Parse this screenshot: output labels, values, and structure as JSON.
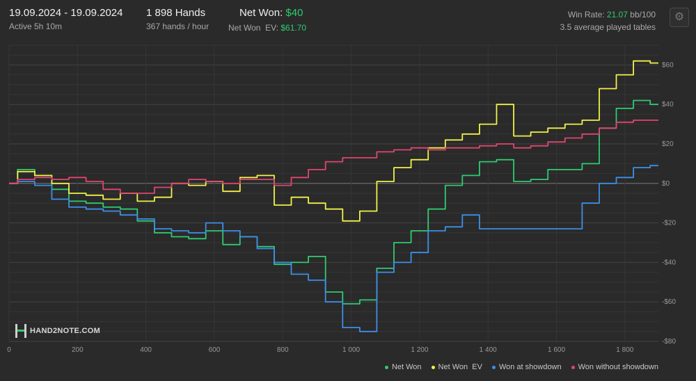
{
  "header": {
    "date_range": "19.09.2024 - 19.09.2024",
    "active": "Active 5h 10m",
    "hands": "1 898 Hands",
    "hands_per_hour": "367 hands / hour",
    "net_won_label": "Net Won:",
    "net_won_value": "$40",
    "net_won_ev_label": "Net Won  EV:",
    "net_won_ev_value": "$61.70",
    "win_rate_label": "Win Rate:",
    "win_rate_value": "21.07",
    "win_rate_unit": "bb/100",
    "avg_tables": "3.5 average played tables"
  },
  "logo": {
    "text": "HAND2NOTE.COM"
  },
  "icons": {
    "settings": "gear-icon",
    "logo": "hand2note-logo-icon"
  },
  "colors": {
    "net_won": "#2ecc71",
    "net_won_ev": "#f1f24a",
    "won_at_showdown": "#3d8fe8",
    "won_without_showdown": "#e0456f",
    "highlight": "#2ecc71"
  },
  "chart_data": {
    "type": "line",
    "xlim": [
      0,
      1898
    ],
    "ylim": [
      -80,
      70
    ],
    "x_ticks": [
      0,
      200,
      400,
      600,
      800,
      1000,
      1200,
      1400,
      1600,
      1800
    ],
    "x_tick_labels": [
      "0",
      "200",
      "400",
      "600",
      "800",
      "1 000",
      "1 200",
      "1 400",
      "1 600",
      "1 800"
    ],
    "y_ticks": [
      60,
      40,
      20,
      0,
      -20,
      -40,
      -60,
      -80
    ],
    "y_tick_labels": [
      "$60",
      "$40",
      "$20",
      "$0",
      "-$20",
      "-$40",
      "-$60",
      "-$80"
    ],
    "grid": true,
    "legend_position": "bottom-right",
    "x": [
      0,
      50,
      100,
      150,
      200,
      250,
      300,
      350,
      400,
      450,
      500,
      550,
      600,
      650,
      700,
      750,
      800,
      850,
      900,
      950,
      1000,
      1050,
      1100,
      1150,
      1200,
      1250,
      1300,
      1350,
      1400,
      1450,
      1500,
      1550,
      1600,
      1650,
      1700,
      1750,
      1800,
      1850,
      1898
    ],
    "series": [
      {
        "name": "Net Won",
        "color": "#2ecc71",
        "values": [
          0,
          7,
          4,
          -3,
          -9,
          -10,
          -12,
          -13,
          -19,
          -25,
          -27,
          -28,
          -24,
          -31,
          -27,
          -32,
          -41,
          -40,
          -37,
          -55,
          -61,
          -59,
          -43,
          -30,
          -24,
          -13,
          -1,
          4,
          11,
          12,
          1,
          2,
          7,
          7,
          10,
          28,
          38,
          42,
          40
        ]
      },
      {
        "name": "Net Won  EV",
        "color": "#f1f24a",
        "values": [
          0,
          6,
          4,
          0,
          -5,
          -6,
          -8,
          -5,
          -9,
          -7,
          0,
          -1,
          1,
          -4,
          3,
          4,
          -11,
          -7,
          -10,
          -13,
          -19,
          -14,
          1,
          8,
          12,
          18,
          22,
          25,
          30,
          40,
          24,
          26,
          28,
          30,
          32,
          48,
          55,
          62,
          61
        ]
      },
      {
        "name": "Won at showdown",
        "color": "#3d8fe8",
        "values": [
          0,
          1,
          -1,
          -8,
          -12,
          -13,
          -14,
          -16,
          -18,
          -23,
          -24,
          -25,
          -20,
          -24,
          -27,
          -33,
          -40,
          -46,
          -49,
          -60,
          -73,
          -75,
          -45,
          -40,
          -35,
          -24,
          -22,
          -16,
          -23,
          -23,
          -23,
          -23,
          -23,
          -23,
          -10,
          0,
          3,
          8,
          9
        ]
      },
      {
        "name": "Won without showdown",
        "color": "#e0456f",
        "values": [
          0,
          2,
          3,
          2,
          3,
          1,
          -3,
          -5,
          -5,
          -2,
          0,
          2,
          1,
          0,
          2,
          2,
          -1,
          3,
          7,
          11,
          13,
          13,
          16,
          17,
          18,
          17,
          18,
          18,
          19,
          20,
          18,
          19,
          21,
          23,
          25,
          28,
          31,
          32,
          32
        ]
      }
    ]
  }
}
